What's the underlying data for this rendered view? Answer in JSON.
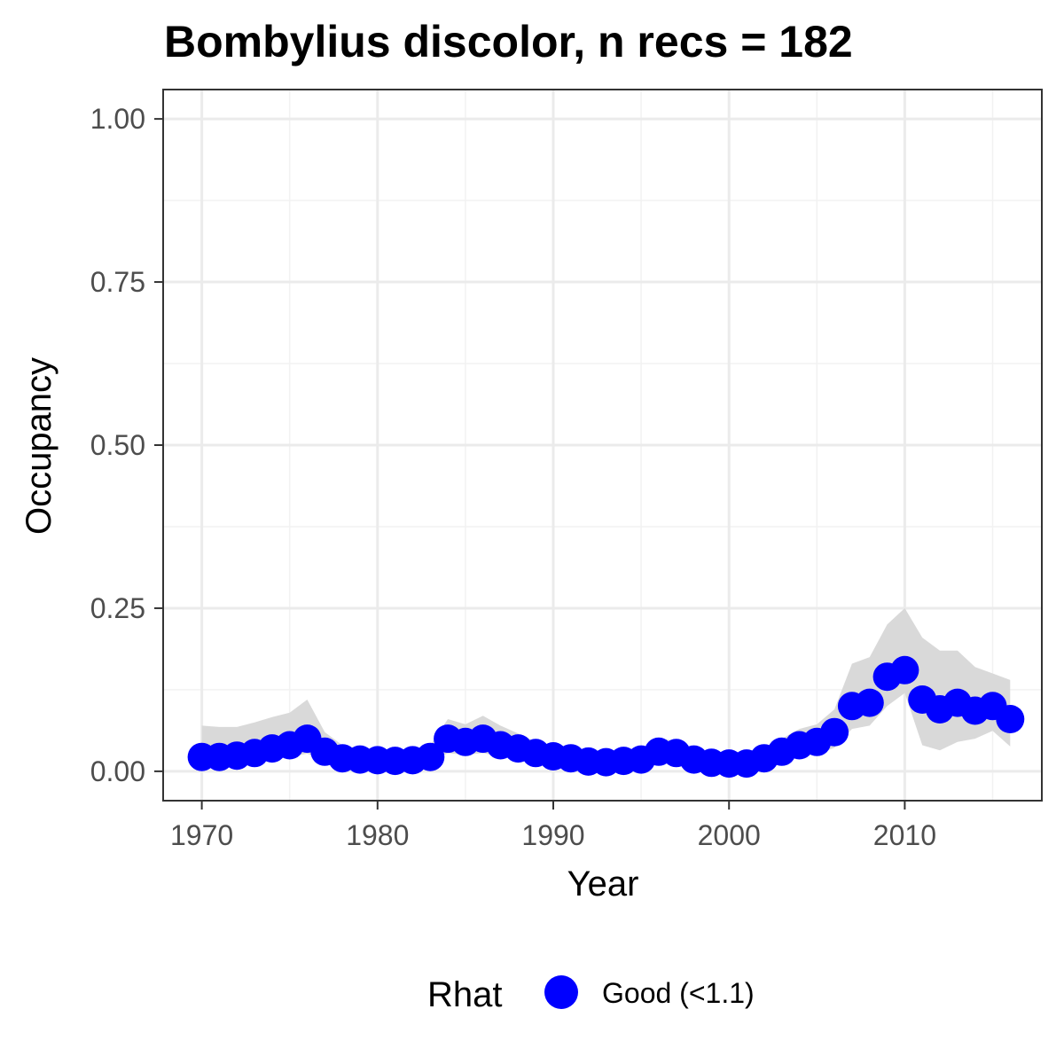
{
  "chart_data": {
    "type": "line",
    "title": "Bombylius discolor, n recs = 182",
    "xlabel": "Year",
    "ylabel": "Occupancy",
    "xlim": [
      1967.8,
      2017.8
    ],
    "ylim": [
      -0.045,
      1.045
    ],
    "xticks": [
      {
        "value": 1970,
        "label": "1970"
      },
      {
        "value": 1980,
        "label": "1980"
      },
      {
        "value": 1990,
        "label": "1990"
      },
      {
        "value": 2000,
        "label": "2000"
      },
      {
        "value": 2010,
        "label": "2010"
      }
    ],
    "yticks": [
      {
        "value": 0,
        "label": "0.00"
      },
      {
        "value": 0.25,
        "label": "0.25"
      },
      {
        "value": 0.5,
        "label": "0.50"
      },
      {
        "value": 0.75,
        "label": "0.75"
      },
      {
        "value": 1,
        "label": "1.00"
      }
    ],
    "grid": true,
    "legend": {
      "title": "Rhat",
      "placement": "bottom",
      "items": [
        {
          "label": "Good (<1.1)",
          "color": "#0000ff"
        }
      ]
    },
    "series": [
      {
        "color": "#0000ff",
        "ribbon_color": "#d9d9d9",
        "x": [
          1970,
          1971,
          1972,
          1973,
          1974,
          1975,
          1976,
          1977,
          1978,
          1979,
          1980,
          1981,
          1982,
          1983,
          1984,
          1985,
          1986,
          1987,
          1988,
          1989,
          1990,
          1991,
          1992,
          1993,
          1994,
          1995,
          1996,
          1997,
          1998,
          1999,
          2000,
          2001,
          2002,
          2003,
          2004,
          2005,
          2006,
          2007,
          2008,
          2009,
          2010,
          2011,
          2012,
          2013,
          2014,
          2015,
          2016
        ],
        "y": [
          0.022,
          0.022,
          0.024,
          0.028,
          0.035,
          0.04,
          0.05,
          0.03,
          0.02,
          0.018,
          0.017,
          0.016,
          0.017,
          0.022,
          0.05,
          0.045,
          0.05,
          0.04,
          0.035,
          0.028,
          0.023,
          0.02,
          0.015,
          0.014,
          0.016,
          0.018,
          0.03,
          0.028,
          0.018,
          0.013,
          0.012,
          0.012,
          0.02,
          0.03,
          0.04,
          0.045,
          0.06,
          0.1,
          0.105,
          0.145,
          0.155,
          0.11,
          0.095,
          0.105,
          0.093,
          0.1,
          0.08
        ],
        "lower": [
          0.012,
          0.012,
          0.013,
          0.015,
          0.019,
          0.022,
          0.027,
          0.016,
          0.011,
          0.009,
          0.008,
          0.008,
          0.009,
          0.012,
          0.028,
          0.025,
          0.028,
          0.022,
          0.019,
          0.015,
          0.012,
          0.01,
          0.007,
          0.007,
          0.008,
          0.009,
          0.016,
          0.015,
          0.009,
          0.006,
          0.006,
          0.006,
          0.01,
          0.017,
          0.023,
          0.026,
          0.036,
          0.065,
          0.07,
          0.1,
          0.12,
          0.04,
          0.032,
          0.045,
          0.05,
          0.062,
          0.038
        ],
        "upper": [
          0.07,
          0.068,
          0.068,
          0.075,
          0.083,
          0.09,
          0.11,
          0.06,
          0.04,
          0.035,
          0.033,
          0.032,
          0.034,
          0.04,
          0.08,
          0.072,
          0.085,
          0.07,
          0.058,
          0.045,
          0.038,
          0.033,
          0.027,
          0.025,
          0.028,
          0.032,
          0.05,
          0.047,
          0.033,
          0.025,
          0.023,
          0.023,
          0.033,
          0.05,
          0.065,
          0.072,
          0.095,
          0.165,
          0.175,
          0.225,
          0.25,
          0.205,
          0.185,
          0.185,
          0.16,
          0.15,
          0.14
        ]
      }
    ]
  }
}
